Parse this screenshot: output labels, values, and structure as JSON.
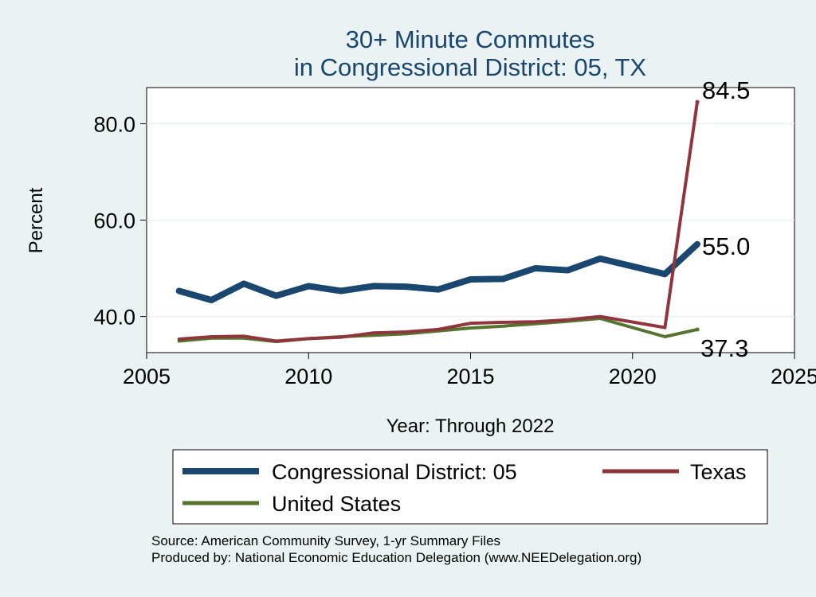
{
  "chart_data": {
    "type": "line",
    "title_line1": "30+ Minute Commutes",
    "title_line2": "in Congressional District:  05, TX",
    "xlabel": "Year: Through 2022",
    "ylabel": "Percent",
    "xlim": [
      2005,
      2025
    ],
    "ylim": [
      32.5,
      87.5
    ],
    "x_ticks": [
      2005,
      2010,
      2015,
      2020,
      2025
    ],
    "y_ticks": [
      40,
      60,
      80
    ],
    "y_tick_labels": [
      "40.0",
      "60.0",
      "80.0"
    ],
    "grid": true,
    "x": [
      2006,
      2007,
      2008,
      2009,
      2010,
      2011,
      2012,
      2013,
      2014,
      2015,
      2016,
      2017,
      2018,
      2019,
      2021,
      2022
    ],
    "series": [
      {
        "name": "Congressional District:  05",
        "color": "#1a476f",
        "values": [
          45.3,
          43.4,
          46.8,
          44.3,
          46.3,
          45.3,
          46.3,
          46.2,
          45.6,
          47.7,
          47.8,
          50.0,
          49.6,
          52.0,
          48.8,
          55.0
        ],
        "end_label": "55.0"
      },
      {
        "name": "Texas",
        "color": "#90353b",
        "values": [
          35.3,
          35.8,
          35.9,
          34.9,
          35.4,
          35.7,
          36.6,
          36.8,
          37.3,
          38.6,
          38.8,
          38.9,
          39.3,
          40.0,
          37.7,
          84.5
        ],
        "end_label": "84.5"
      },
      {
        "name": "United States",
        "color": "#55752f",
        "values": [
          34.9,
          35.5,
          35.5,
          34.8,
          35.4,
          35.8,
          36.1,
          36.4,
          37.0,
          37.6,
          38.0,
          38.5,
          39.0,
          39.6,
          35.8,
          37.3
        ],
        "end_label": "37.3"
      }
    ],
    "legend": {
      "placement": "bottom",
      "entries": [
        "Congressional District:  05",
        "Texas",
        "United States"
      ]
    }
  },
  "footer": {
    "source": "Source: American Community Survey, 1-yr Summary Files",
    "produced_by": "Produced by: National Economic Education Delegation (www.NEEDelegation.org)"
  }
}
